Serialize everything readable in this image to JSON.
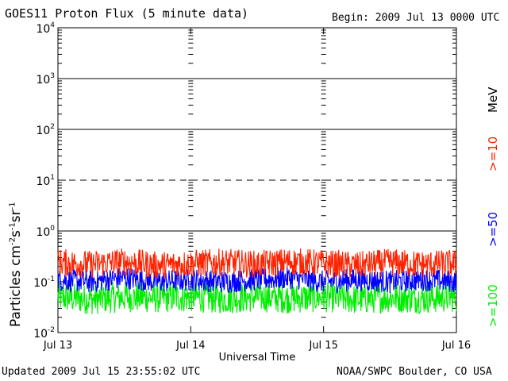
{
  "header": {
    "title": "GOES11 Proton Flux (5 minute data)",
    "begin": "Begin: 2009 Jul 13 0000 UTC"
  },
  "footer": {
    "updated": "Updated 2009 Jul 15 23:55:02 UTC",
    "credit": "NOAA/SWPC Boulder, CO USA"
  },
  "chart_data": {
    "type": "line",
    "title": "GOES11 Proton Flux (5 minute data)",
    "xlabel": "Universal Time",
    "ylabel": "Particles cm-2 s-1 sr-1",
    "ylabel_parts": {
      "base": "Particles cm",
      "e1": "-2",
      "s": "s",
      "e2": "-1",
      "sr": "sr",
      "e3": "-1"
    },
    "yscale": "log",
    "ylim": [
      0.01,
      10000
    ],
    "ytick_labels": [
      {
        "base": "10",
        "exp": "-2"
      },
      {
        "base": "10",
        "exp": "-1"
      },
      {
        "base": "10",
        "exp": "0"
      },
      {
        "base": "10",
        "exp": "1"
      },
      {
        "base": "10",
        "exp": "2"
      },
      {
        "base": "10",
        "exp": "3"
      },
      {
        "base": "10",
        "exp": "4"
      }
    ],
    "thresholds": [
      {
        "value": 1,
        "style": "solid"
      },
      {
        "value": 10,
        "style": "dashed"
      },
      {
        "value": 100,
        "style": "solid"
      },
      {
        "value": 1000,
        "style": "solid"
      }
    ],
    "x_categories": [
      "Jul 13",
      "Jul 14",
      "Jul 15",
      "Jul 16"
    ],
    "xlim_days": [
      0,
      3
    ],
    "unit_label": "MeV",
    "colors": {
      "p10": "#ff2200",
      "p50": "#0000ff",
      "p100": "#00ee00"
    },
    "series": [
      {
        "name": ">=10",
        "color": "#ff2200",
        "x_days": [
          0,
          0.25,
          0.5,
          0.75,
          1,
          1.25,
          1.5,
          1.75,
          2,
          2.25,
          2.5,
          2.75,
          3
        ],
        "values": [
          0.24,
          0.22,
          0.25,
          0.21,
          0.23,
          0.24,
          0.22,
          0.25,
          0.23,
          0.21,
          0.24,
          0.22,
          0.23
        ]
      },
      {
        "name": ">=50",
        "color": "#0000ff",
        "x_days": [
          0,
          0.25,
          0.5,
          0.75,
          1,
          1.25,
          1.5,
          1.75,
          2,
          2.25,
          2.5,
          2.75,
          3
        ],
        "values": [
          0.11,
          0.1,
          0.12,
          0.1,
          0.11,
          0.1,
          0.11,
          0.12,
          0.1,
          0.11,
          0.1,
          0.11,
          0.1
        ]
      },
      {
        "name": ">=100",
        "color": "#00ee00",
        "x_days": [
          0,
          0.25,
          0.5,
          0.75,
          1,
          1.25,
          1.5,
          1.75,
          2,
          2.25,
          2.5,
          2.75,
          3
        ],
        "values": [
          0.05,
          0.045,
          0.05,
          0.048,
          0.05,
          0.046,
          0.05,
          0.047,
          0.05,
          0.045,
          0.049,
          0.047,
          0.05
        ]
      }
    ]
  }
}
